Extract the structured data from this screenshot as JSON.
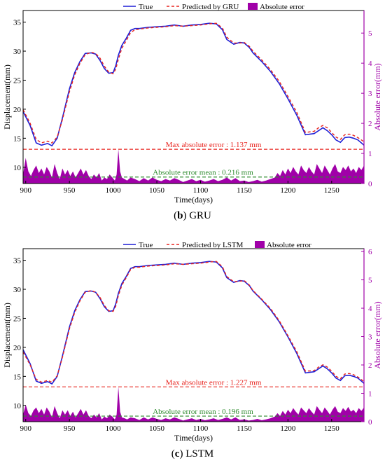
{
  "chart_data": [
    {
      "type": "line",
      "caption_letter": "b",
      "caption_name": "GRU",
      "xlabel": "Time(days)",
      "ylabel": "Displacement(mm)",
      "y2label": "Absolute error(mm)",
      "xlim": [
        897,
        1287
      ],
      "ylim": [
        7.2,
        37
      ],
      "y2lim": [
        0,
        5.75
      ],
      "xticks": [
        900,
        950,
        1000,
        1050,
        1100,
        1150,
        1200,
        1250
      ],
      "yticks": [
        10,
        15,
        20,
        25,
        30,
        35
      ],
      "y2ticks": [
        0,
        1,
        2,
        3,
        4,
        5
      ],
      "legend_position": "top-center",
      "legend": [
        "True",
        "Predicted by GRU",
        "Absolute error"
      ],
      "colors": {
        "true": "#1f1fd6",
        "pred": "#e8231e",
        "error": "#a000a8",
        "mean": "#2e8b2e"
      },
      "max_error_label": "Max absolute error : 1.137 mm",
      "max_error_value": 1.137,
      "mean_error_label": "Absolute error mean : 0.216 mm",
      "mean_error_value": 0.216,
      "series": [
        {
          "name": "True",
          "x": [
            897,
            905,
            912,
            918,
            925,
            930,
            936,
            942,
            950,
            956,
            962,
            968,
            975,
            980,
            985,
            990,
            995,
            1000,
            1003,
            1006,
            1010,
            1015,
            1020,
            1025,
            1030,
            1040,
            1050,
            1060,
            1070,
            1080,
            1090,
            1100,
            1110,
            1118,
            1125,
            1130,
            1138,
            1145,
            1150,
            1156,
            1160,
            1170,
            1180,
            1190,
            1200,
            1210,
            1220,
            1230,
            1235,
            1240,
            1245,
            1250,
            1255,
            1260,
            1265,
            1270,
            1275,
            1280,
            1287
          ],
          "y": [
            19.6,
            17.2,
            14.2,
            13.8,
            14.1,
            13.7,
            15.0,
            18.5,
            23.5,
            26.3,
            28.2,
            29.6,
            29.7,
            29.5,
            28.4,
            27.0,
            26.2,
            26.3,
            27.5,
            29.3,
            31.0,
            32.2,
            33.6,
            33.9,
            33.9,
            34.1,
            34.2,
            34.3,
            34.5,
            34.3,
            34.5,
            34.6,
            34.8,
            34.7,
            33.7,
            32.0,
            31.2,
            31.5,
            31.4,
            30.6,
            29.7,
            28.2,
            26.5,
            24.4,
            21.8,
            19.0,
            15.6,
            15.8,
            16.3,
            16.8,
            16.3,
            15.6,
            14.7,
            14.3,
            15.1,
            15.2,
            15.0,
            14.7,
            13.8
          ]
        },
        {
          "name": "Predicted by GRU",
          "x": [
            897,
            905,
            912,
            918,
            925,
            930,
            936,
            942,
            950,
            956,
            962,
            968,
            975,
            980,
            985,
            990,
            995,
            1000,
            1003,
            1006,
            1010,
            1015,
            1020,
            1025,
            1030,
            1040,
            1050,
            1060,
            1070,
            1080,
            1090,
            1100,
            1110,
            1118,
            1125,
            1130,
            1138,
            1145,
            1150,
            1156,
            1160,
            1170,
            1180,
            1190,
            1200,
            1210,
            1220,
            1230,
            1235,
            1240,
            1245,
            1250,
            1255,
            1260,
            1265,
            1270,
            1275,
            1280,
            1287
          ],
          "y": [
            19.9,
            17.6,
            14.8,
            14.2,
            14.5,
            14.2,
            15.2,
            18.2,
            23.0,
            25.9,
            27.9,
            29.4,
            29.8,
            29.6,
            28.8,
            27.4,
            26.4,
            26.1,
            26.9,
            28.6,
            30.5,
            31.8,
            33.2,
            33.7,
            33.8,
            34.0,
            34.1,
            34.2,
            34.4,
            34.3,
            34.4,
            34.5,
            34.7,
            34.8,
            34.0,
            32.4,
            31.4,
            31.4,
            31.5,
            30.8,
            30.0,
            28.5,
            26.8,
            24.8,
            22.2,
            19.5,
            16.0,
            16.2,
            16.8,
            17.2,
            16.8,
            16.0,
            15.2,
            14.8,
            15.6,
            15.7,
            15.5,
            15.1,
            14.4
          ]
        },
        {
          "name": "Absolute error",
          "x": [
            897,
            900,
            903,
            906,
            909,
            912,
            915,
            918,
            921,
            924,
            927,
            930,
            933,
            936,
            939,
            942,
            945,
            948,
            951,
            954,
            957,
            960,
            963,
            966,
            969,
            972,
            975,
            978,
            981,
            984,
            987,
            990,
            993,
            996,
            999,
            1002,
            1004,
            1006,
            1008,
            1010,
            1013,
            1016,
            1020,
            1025,
            1030,
            1035,
            1040,
            1045,
            1050,
            1055,
            1060,
            1065,
            1070,
            1075,
            1080,
            1085,
            1090,
            1095,
            1100,
            1105,
            1110,
            1115,
            1120,
            1125,
            1130,
            1135,
            1140,
            1145,
            1150,
            1155,
            1160,
            1165,
            1170,
            1175,
            1180,
            1185,
            1188,
            1191,
            1194,
            1197,
            1200,
            1203,
            1206,
            1209,
            1212,
            1215,
            1218,
            1221,
            1224,
            1227,
            1230,
            1233,
            1236,
            1239,
            1242,
            1245,
            1248,
            1251,
            1254,
            1257,
            1260,
            1263,
            1266,
            1269,
            1272,
            1275,
            1278,
            1281,
            1284,
            1287
          ],
          "y": [
            0.3,
            0.85,
            0.4,
            0.25,
            0.45,
            0.6,
            0.35,
            0.5,
            0.3,
            0.55,
            0.4,
            0.2,
            0.65,
            0.35,
            0.15,
            0.5,
            0.3,
            0.45,
            0.25,
            0.4,
            0.2,
            0.35,
            0.5,
            0.3,
            0.45,
            0.25,
            0.15,
            0.3,
            0.2,
            0.35,
            0.1,
            0.2,
            0.15,
            0.3,
            0.2,
            0.1,
            0.3,
            1.137,
            0.4,
            0.2,
            0.15,
            0.1,
            0.2,
            0.15,
            0.08,
            0.18,
            0.1,
            0.2,
            0.12,
            0.08,
            0.15,
            0.1,
            0.18,
            0.12,
            0.05,
            0.1,
            0.15,
            0.08,
            0.12,
            0.06,
            0.1,
            0.15,
            0.08,
            0.12,
            0.2,
            0.1,
            0.18,
            0.08,
            0.1,
            0.05,
            0.08,
            0.12,
            0.06,
            0.1,
            0.15,
            0.2,
            0.35,
            0.25,
            0.45,
            0.3,
            0.5,
            0.35,
            0.55,
            0.4,
            0.3,
            0.6,
            0.45,
            0.35,
            0.55,
            0.4,
            0.3,
            0.65,
            0.5,
            0.35,
            0.6,
            0.45,
            0.3,
            0.5,
            0.65,
            0.4,
            0.35,
            0.55,
            0.45,
            0.6,
            0.4,
            0.5,
            0.35,
            0.55,
            0.45,
            0.6
          ]
        }
      ]
    },
    {
      "type": "line",
      "caption_letter": "c",
      "caption_name": "LSTM",
      "xlabel": "Time(days)",
      "ylabel": "Displacement(mm)",
      "y2label": "Absolute error(mm)",
      "xlim": [
        897,
        1287
      ],
      "ylim": [
        7.2,
        37
      ],
      "y2lim": [
        0,
        6.1
      ],
      "xticks": [
        900,
        950,
        1000,
        1050,
        1100,
        1150,
        1200,
        1250
      ],
      "yticks": [
        10,
        15,
        20,
        25,
        30,
        35
      ],
      "y2ticks": [
        0,
        1,
        2,
        3,
        4,
        5,
        6
      ],
      "legend_position": "top-center",
      "legend": [
        "True",
        "Predicted by LSTM",
        "Absolute error"
      ],
      "colors": {
        "true": "#1f1fd6",
        "pred": "#e8231e",
        "error": "#a000a8",
        "mean": "#2e8b2e"
      },
      "max_error_label": "Max absolute error : 1.227 mm",
      "max_error_value": 1.227,
      "mean_error_label": "Absolute error mean : 0.196 mm",
      "mean_error_value": 0.196,
      "series": [
        {
          "name": "True",
          "x": [
            897,
            905,
            912,
            918,
            925,
            930,
            936,
            942,
            950,
            956,
            962,
            968,
            975,
            980,
            985,
            990,
            995,
            1000,
            1003,
            1006,
            1010,
            1015,
            1020,
            1025,
            1030,
            1040,
            1050,
            1060,
            1070,
            1080,
            1090,
            1100,
            1110,
            1118,
            1125,
            1130,
            1138,
            1145,
            1150,
            1156,
            1160,
            1170,
            1180,
            1190,
            1200,
            1210,
            1220,
            1230,
            1235,
            1240,
            1245,
            1250,
            1255,
            1260,
            1265,
            1270,
            1275,
            1280,
            1287
          ],
          "y": [
            19.6,
            17.2,
            14.2,
            13.8,
            14.1,
            13.7,
            15.0,
            18.5,
            23.5,
            26.3,
            28.2,
            29.6,
            29.7,
            29.5,
            28.4,
            27.0,
            26.2,
            26.3,
            27.5,
            29.3,
            31.0,
            32.2,
            33.6,
            33.9,
            33.9,
            34.1,
            34.2,
            34.3,
            34.5,
            34.3,
            34.5,
            34.6,
            34.8,
            34.7,
            33.7,
            32.0,
            31.2,
            31.5,
            31.4,
            30.6,
            29.7,
            28.2,
            26.5,
            24.4,
            21.8,
            19.0,
            15.6,
            15.8,
            16.3,
            16.8,
            16.3,
            15.6,
            14.7,
            14.3,
            15.1,
            15.2,
            15.0,
            14.7,
            13.8
          ]
        },
        {
          "name": "Predicted by LSTM",
          "x": [
            897,
            905,
            912,
            918,
            925,
            930,
            936,
            942,
            950,
            956,
            962,
            968,
            975,
            980,
            985,
            990,
            995,
            1000,
            1003,
            1006,
            1010,
            1015,
            1020,
            1025,
            1030,
            1040,
            1050,
            1060,
            1070,
            1080,
            1090,
            1100,
            1110,
            1118,
            1125,
            1130,
            1138,
            1145,
            1150,
            1156,
            1160,
            1170,
            1180,
            1190,
            1200,
            1210,
            1220,
            1230,
            1235,
            1240,
            1245,
            1250,
            1255,
            1260,
            1265,
            1270,
            1275,
            1280,
            1287
          ],
          "y": [
            19.2,
            17.0,
            14.5,
            14.0,
            14.3,
            14.0,
            15.1,
            18.3,
            23.2,
            26.0,
            28.0,
            29.5,
            29.8,
            29.5,
            28.6,
            27.2,
            26.3,
            26.2,
            27.1,
            28.9,
            30.7,
            32.0,
            33.4,
            33.8,
            33.8,
            34.0,
            34.1,
            34.2,
            34.4,
            34.3,
            34.4,
            34.5,
            34.7,
            34.8,
            33.9,
            32.2,
            31.3,
            31.4,
            31.5,
            30.7,
            29.8,
            28.3,
            26.7,
            24.6,
            22.0,
            19.3,
            15.9,
            16.0,
            16.6,
            17.0,
            16.6,
            15.9,
            15.0,
            14.6,
            15.4,
            15.5,
            15.3,
            14.9,
            14.1
          ]
        },
        {
          "name": "Absolute error",
          "x": [
            897,
            900,
            903,
            906,
            909,
            912,
            915,
            918,
            921,
            924,
            927,
            930,
            933,
            936,
            939,
            942,
            945,
            948,
            951,
            954,
            957,
            960,
            963,
            966,
            969,
            972,
            975,
            978,
            981,
            984,
            987,
            990,
            993,
            996,
            999,
            1002,
            1004,
            1006,
            1008,
            1010,
            1013,
            1016,
            1020,
            1025,
            1030,
            1035,
            1040,
            1045,
            1050,
            1055,
            1060,
            1065,
            1070,
            1075,
            1080,
            1085,
            1090,
            1095,
            1100,
            1105,
            1110,
            1115,
            1120,
            1125,
            1130,
            1135,
            1140,
            1145,
            1150,
            1155,
            1160,
            1165,
            1170,
            1175,
            1180,
            1185,
            1188,
            1191,
            1194,
            1197,
            1200,
            1203,
            1206,
            1209,
            1212,
            1215,
            1218,
            1221,
            1224,
            1227,
            1230,
            1233,
            1236,
            1239,
            1242,
            1245,
            1248,
            1251,
            1254,
            1257,
            1260,
            1263,
            1266,
            1269,
            1272,
            1275,
            1278,
            1281,
            1284,
            1287
          ],
          "y": [
            0.25,
            0.6,
            0.3,
            0.2,
            0.4,
            0.5,
            0.3,
            0.45,
            0.25,
            0.5,
            0.35,
            0.15,
            0.55,
            0.3,
            0.12,
            0.4,
            0.25,
            0.4,
            0.2,
            0.35,
            0.15,
            0.3,
            0.45,
            0.25,
            0.4,
            0.2,
            0.12,
            0.25,
            0.15,
            0.3,
            0.08,
            0.18,
            0.12,
            0.25,
            0.18,
            0.08,
            0.25,
            1.227,
            0.35,
            0.15,
            0.12,
            0.08,
            0.15,
            0.12,
            0.06,
            0.15,
            0.08,
            0.15,
            0.1,
            0.06,
            0.12,
            0.08,
            0.15,
            0.1,
            0.04,
            0.08,
            0.12,
            0.06,
            0.1,
            0.05,
            0.08,
            0.12,
            0.06,
            0.1,
            0.15,
            0.08,
            0.15,
            0.06,
            0.08,
            0.04,
            0.06,
            0.1,
            0.05,
            0.08,
            0.12,
            0.18,
            0.3,
            0.2,
            0.38,
            0.25,
            0.42,
            0.3,
            0.48,
            0.35,
            0.25,
            0.5,
            0.4,
            0.3,
            0.48,
            0.35,
            0.25,
            0.55,
            0.42,
            0.3,
            0.5,
            0.38,
            0.25,
            0.42,
            0.55,
            0.35,
            0.3,
            0.48,
            0.38,
            0.52,
            0.35,
            0.42,
            0.3,
            0.48,
            0.38,
            0.5
          ]
        }
      ]
    }
  ]
}
